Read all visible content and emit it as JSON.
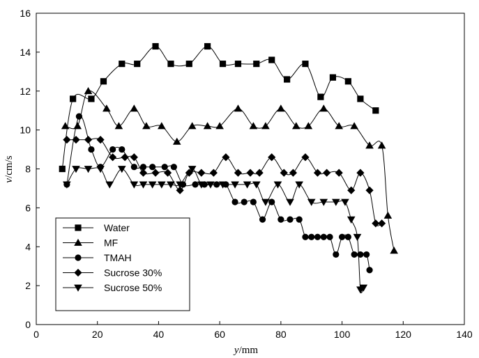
{
  "chart_data": {
    "type": "line",
    "title": "",
    "xlabel_var": "y",
    "xlabel_unit": "/mm",
    "ylabel_var": "v",
    "ylabel_unit": "/cm/s",
    "xlim": [
      0,
      140
    ],
    "ylim": [
      0,
      16
    ],
    "xticks": [
      0,
      20,
      40,
      60,
      80,
      100,
      120,
      140
    ],
    "yticks": [
      0,
      2,
      4,
      6,
      8,
      10,
      12,
      14,
      16
    ],
    "grid": false,
    "legend_position": "bottom-left",
    "series": [
      {
        "name": "Water",
        "marker": "square",
        "x": [
          8.5,
          12,
          18,
          22,
          28,
          33,
          39,
          44,
          50,
          56,
          61,
          66,
          72,
          77,
          82,
          88,
          93,
          97,
          102,
          106,
          111
        ],
        "y": [
          8.0,
          11.6,
          11.6,
          12.5,
          13.4,
          13.4,
          14.3,
          13.4,
          13.4,
          14.3,
          13.4,
          13.4,
          13.4,
          13.6,
          12.6,
          13.4,
          11.7,
          12.7,
          12.5,
          11.6,
          11.0
        ]
      },
      {
        "name": "MF",
        "marker": "triangle-up",
        "x": [
          9.5,
          13.5,
          17,
          23,
          27,
          32,
          36,
          41,
          46,
          51,
          56,
          60,
          66,
          71,
          75,
          80,
          85,
          89,
          94,
          99,
          104,
          109,
          113,
          115,
          117
        ],
        "y": [
          10.2,
          10.2,
          12.0,
          11.1,
          10.2,
          11.1,
          10.2,
          10.2,
          9.4,
          10.2,
          10.2,
          10.2,
          11.1,
          10.2,
          10.2,
          11.1,
          10.2,
          10.2,
          11.1,
          10.2,
          10.2,
          9.2,
          9.2,
          5.6,
          3.8
        ]
      },
      {
        "name": "TMAH",
        "marker": "circle",
        "x": [
          10,
          14,
          18,
          21,
          25,
          28,
          32,
          35,
          38,
          42,
          45,
          48,
          52,
          55,
          59,
          62,
          65,
          68,
          71,
          74,
          77,
          80,
          83,
          86,
          88,
          90,
          92,
          94,
          96,
          98,
          100,
          102,
          104,
          106,
          108,
          109
        ],
        "y": [
          7.2,
          10.7,
          9.0,
          8.1,
          9.0,
          9.0,
          8.1,
          8.1,
          8.1,
          8.1,
          8.1,
          7.2,
          7.2,
          7.2,
          7.2,
          7.2,
          6.3,
          6.3,
          6.3,
          5.4,
          6.3,
          5.4,
          5.4,
          5.4,
          4.5,
          4.5,
          4.5,
          4.5,
          4.5,
          3.6,
          4.5,
          4.5,
          3.6,
          3.6,
          3.6,
          2.8
        ]
      },
      {
        "name": "Sucrose 30%",
        "marker": "diamond",
        "x": [
          10,
          13,
          17,
          21,
          25,
          29,
          32,
          35,
          39,
          43,
          47,
          50,
          54,
          58,
          62,
          66,
          70,
          73,
          77,
          81,
          84,
          88,
          92,
          95,
          99,
          103,
          106,
          109,
          111,
          113
        ],
        "y": [
          9.5,
          9.5,
          9.5,
          9.5,
          8.6,
          8.6,
          8.6,
          7.8,
          7.8,
          7.8,
          6.9,
          7.8,
          7.8,
          7.8,
          8.6,
          7.8,
          7.8,
          7.8,
          8.6,
          7.8,
          7.8,
          8.6,
          7.8,
          7.8,
          7.8,
          6.9,
          7.8,
          6.9,
          5.2,
          5.2
        ]
      },
      {
        "name": "Sucrose 50%",
        "marker": "triangle-down",
        "x": [
          10,
          13,
          17,
          21,
          24,
          28,
          32,
          35,
          38,
          41,
          44,
          47,
          51,
          54,
          57,
          61,
          65,
          69,
          72,
          75,
          79,
          83,
          86,
          90,
          94,
          98,
          101,
          103,
          105,
          106,
          107
        ],
        "y": [
          7.2,
          8.0,
          8.0,
          8.0,
          7.2,
          8.0,
          7.2,
          7.2,
          7.2,
          7.2,
          7.2,
          7.2,
          8.0,
          7.2,
          7.2,
          7.2,
          7.2,
          7.2,
          7.2,
          6.3,
          7.2,
          6.3,
          7.2,
          6.3,
          6.3,
          6.3,
          6.3,
          5.4,
          4.5,
          1.8,
          1.9
        ]
      }
    ]
  }
}
